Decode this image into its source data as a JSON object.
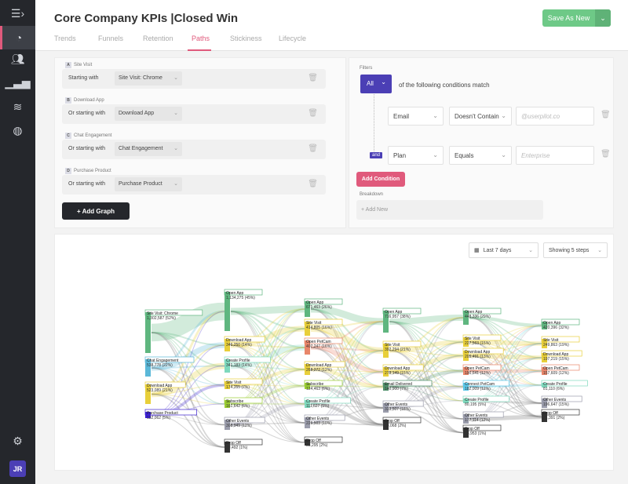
{
  "sidebar": {
    "items": [
      {
        "icon": "menu-expand-icon"
      },
      {
        "icon": "pie-chart-icon",
        "active": true
      },
      {
        "icon": "users-icon"
      },
      {
        "icon": "bar-chart-icon"
      },
      {
        "icon": "layers-icon"
      },
      {
        "icon": "dashboard-icon"
      }
    ],
    "settings_icon": "gear-icon",
    "avatar": "JR"
  },
  "header": {
    "title": "Core Company KPIs |Closed Win",
    "save_label": "Save As New",
    "tabs": [
      "Trends",
      "Funnels",
      "Retention",
      "Paths",
      "Stickiness",
      "Lifecycle"
    ],
    "active_tab": "Paths"
  },
  "graphs": [
    {
      "letter": "A",
      "name": "Site Visit",
      "label": "Starting with",
      "value": "Site Visit: Chrome"
    },
    {
      "letter": "B",
      "name": "Download App",
      "label": "Or starting with",
      "value": "Download App"
    },
    {
      "letter": "C",
      "name": "Chat Engagement",
      "label": "Or starting with",
      "value": "Chat Engagement"
    },
    {
      "letter": "D",
      "name": "Purchase Product",
      "label": "Or starting with",
      "value": "Purchase Product"
    }
  ],
  "add_graph_label": "+ Add Graph",
  "filters": {
    "title": "Filters",
    "match": "All",
    "match_text": "of the following conditions match",
    "and_label": "and",
    "conditions": [
      {
        "property": "Email",
        "operator": "Doesn't Contain",
        "placeholder": "@userpilot.co"
      },
      {
        "property": "Plan",
        "operator": "Equals",
        "placeholder": "Enterprise"
      }
    ],
    "add_condition_label": "Add Condition",
    "breakdown_title": "Breakdown",
    "add_new_label": "+ Add New"
  },
  "chart_controls": {
    "date_range": "Last 7 days",
    "steps": "Showing 5 steps"
  },
  "colors": {
    "accent": "#e05a7c",
    "primary": "#4b3fb5",
    "save": "#6ec987"
  },
  "chart_data": {
    "type": "sankey",
    "columns": [
      [
        {
          "label": "Site Visit: Chrome",
          "value": "1,302,587 (52%)",
          "color": "#5fb67f"
        },
        {
          "label": "Chat Engagement",
          "value": "538,778 (22%)",
          "color": "#5bb8d8"
        },
        {
          "label": "Download App",
          "value": "523,089 (21%)",
          "color": "#e8cf3a"
        },
        {
          "label": "Purchase Product",
          "value": "132,062 (5%)",
          "color": "#3a1fd1"
        }
      ],
      [
        {
          "label": "Open App",
          "value": "1,134,275 (45%)",
          "color": "#5fb67f"
        },
        {
          "label": "Download App",
          "value": "346,250 (14%)",
          "color": "#e8cf3a"
        },
        {
          "label": "Create Profile",
          "value": "341,183 (14%)",
          "color": "#7ed9bd"
        },
        {
          "label": "Site Visit",
          "value": "174,355 (7%)",
          "color": "#e8cf3a"
        },
        {
          "label": "Subscribe",
          "value": "161,642 (6%)",
          "color": "#9acd32"
        },
        {
          "label": "Other Events",
          "value": "308,949 (12%)",
          "color": "#9a9cab"
        },
        {
          "label": "Drop Off",
          "value": "29,492 (1%)",
          "color": "#333333"
        }
      ],
      [
        {
          "label": "Open App",
          "value": "671,463 (26%)",
          "color": "#5fb67f"
        },
        {
          "label": "Site Visit",
          "value": "414,805 (16%)",
          "color": "#e8cf3a"
        },
        {
          "label": "Open PetCam",
          "value": "407,247 (16%)",
          "color": "#e8866a"
        },
        {
          "label": "Download App",
          "value": "268,272 (12%)",
          "color": "#e8cf3a"
        },
        {
          "label": "Subscribe",
          "value": "124,463 (6%)",
          "color": "#9acd32"
        },
        {
          "label": "Create Profile",
          "value": "111,627 (5%)",
          "color": "#7ed9bd"
        },
        {
          "label": "Other Events",
          "value": "226,503 (10%)",
          "color": "#9a9cab"
        },
        {
          "label": "Drop Off",
          "value": "38,295 (2%)",
          "color": "#333333"
        }
      ],
      [
        {
          "label": "Open App",
          "value": "716,957 (38%)",
          "color": "#5fb67f"
        },
        {
          "label": "Site Visit",
          "value": "392,294 (21%)",
          "color": "#e8cf3a"
        },
        {
          "label": "Download App",
          "value": "278,149 (15%)",
          "color": "#e8cf3a"
        },
        {
          "label": "Email Delivered",
          "value": "140,900 (7%)",
          "color": "#4f8f6a"
        },
        {
          "label": "Other Events",
          "value": "333,507 (18%)",
          "color": "#9a9cab"
        },
        {
          "label": "Drop Off",
          "value": "38,068 (2%)",
          "color": "#333333"
        }
      ],
      [
        {
          "label": "Open App",
          "value": "448,336 (29%)",
          "color": "#5fb67f"
        },
        {
          "label": "Site Visit",
          "value": "227,563 (15%)",
          "color": "#e8cf3a"
        },
        {
          "label": "Download App",
          "value": "205,491 (13%)",
          "color": "#e8cf3a"
        },
        {
          "label": "Open PetCam",
          "value": "190,641 (12%)",
          "color": "#e8866a"
        },
        {
          "label": "Connect PetCam",
          "value": "182,009 (12%)",
          "color": "#5bc8e8"
        },
        {
          "label": "Create Profile",
          "value": "80,195 (5%)",
          "color": "#7ed9bd"
        },
        {
          "label": "Other Events",
          "value": "177,114 (12%)",
          "color": "#9a9cab"
        },
        {
          "label": "Drop Off",
          "value": "15,953 (1%)",
          "color": "#333333"
        }
      ],
      [
        {
          "label": "Open App",
          "value": "420,396 (32%)",
          "color": "#5fb67f"
        },
        {
          "label": "Site Visit",
          "value": "249,863 (19%)",
          "color": "#e8cf3a"
        },
        {
          "label": "Download App",
          "value": "197,219 (15%)",
          "color": "#e8cf3a"
        },
        {
          "label": "Open PetCam",
          "value": "157,609 (12%)",
          "color": "#e8866a"
        },
        {
          "label": "Create Profile",
          "value": "81,110 (6%)",
          "color": "#7ed9bd"
        },
        {
          "label": "Other Events",
          "value": "196,647 (15%)",
          "color": "#9a9cab"
        },
        {
          "label": "Drop Off",
          "value": "21,391 (2%)",
          "color": "#333333"
        }
      ]
    ]
  }
}
